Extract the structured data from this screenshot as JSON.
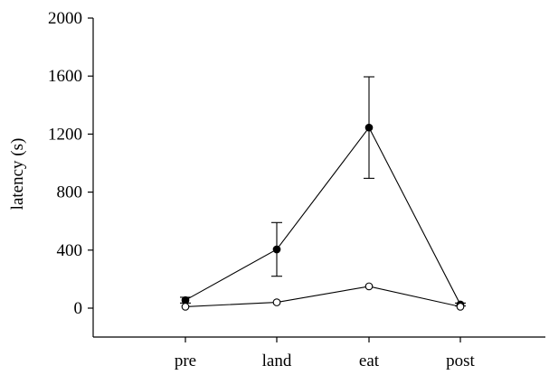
{
  "chart_data": {
    "type": "line",
    "categories": [
      "pre",
      "land",
      "eat",
      "post"
    ],
    "ylabel": "latency (s)",
    "xlabel": "",
    "ylim": [
      -200,
      2000
    ],
    "yticks": [
      0,
      400,
      800,
      1200,
      1600,
      2000
    ],
    "grid": false,
    "series": [
      {
        "marker": "filled-circle",
        "color": "#000000",
        "values": [
          55,
          405,
          1245,
          25
        ],
        "error": [
          20,
          185,
          350,
          10
        ]
      },
      {
        "marker": "open-circle",
        "color": "#000000",
        "values": [
          10,
          40,
          150,
          10
        ],
        "error": [
          0,
          0,
          0,
          0
        ]
      }
    ]
  }
}
